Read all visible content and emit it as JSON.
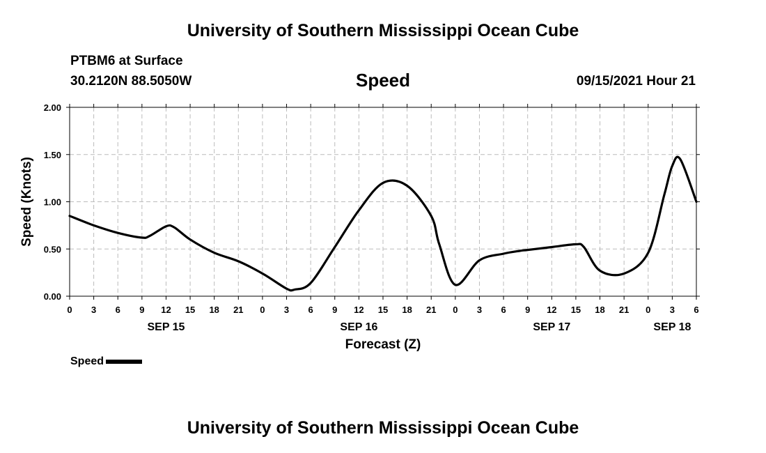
{
  "page": {
    "top_title": "University of Southern Mississippi Ocean Cube",
    "bottom_title": "University of Southern Mississippi Ocean Cube",
    "station": "PTBM6 at Surface",
    "coords": "30.2120N  88.5050W",
    "timestamp": "09/15/2021 Hour 21"
  },
  "chart_data": {
    "type": "line",
    "title": "Speed",
    "xlabel": "Forecast (Z)",
    "ylabel": "Speed (Knots)",
    "xlim": [
      0,
      78
    ],
    "ylim": [
      0,
      2.0
    ],
    "yticks": [
      "0.00",
      "0.50",
      "1.00",
      "1.50",
      "2.00"
    ],
    "xticks": [
      "0",
      "3",
      "6",
      "9",
      "12",
      "15",
      "18",
      "21",
      "0",
      "3",
      "6",
      "9",
      "12",
      "15",
      "18",
      "21",
      "0",
      "3",
      "6",
      "9",
      "12",
      "15",
      "18",
      "21",
      "0",
      "3",
      "6"
    ],
    "date_labels": [
      {
        "label": "SEP 15",
        "hours": 12
      },
      {
        "label": "SEP 16",
        "hours": 36
      },
      {
        "label": "SEP 17",
        "hours": 60
      },
      {
        "label": "SEP 18",
        "hours": 75
      }
    ],
    "grid": true,
    "legend": "bottom-left",
    "series": [
      {
        "name": "Speed",
        "color": "#000000",
        "x": [
          0,
          3,
          6,
          9,
          10,
          12,
          13,
          15,
          18,
          21,
          24,
          27,
          28,
          30,
          33,
          36,
          39,
          42,
          45,
          46,
          48,
          51,
          54,
          56,
          57,
          60,
          63,
          64,
          66,
          69,
          72,
          74,
          75,
          76,
          78
        ],
        "y": [
          0.85,
          0.75,
          0.67,
          0.62,
          0.64,
          0.74,
          0.73,
          0.6,
          0.46,
          0.37,
          0.24,
          0.08,
          0.07,
          0.14,
          0.52,
          0.91,
          1.2,
          1.17,
          0.85,
          0.55,
          0.12,
          0.38,
          0.45,
          0.48,
          0.49,
          0.52,
          0.55,
          0.52,
          0.27,
          0.24,
          0.46,
          1.07,
          1.38,
          1.45,
          1.0
        ]
      }
    ]
  }
}
